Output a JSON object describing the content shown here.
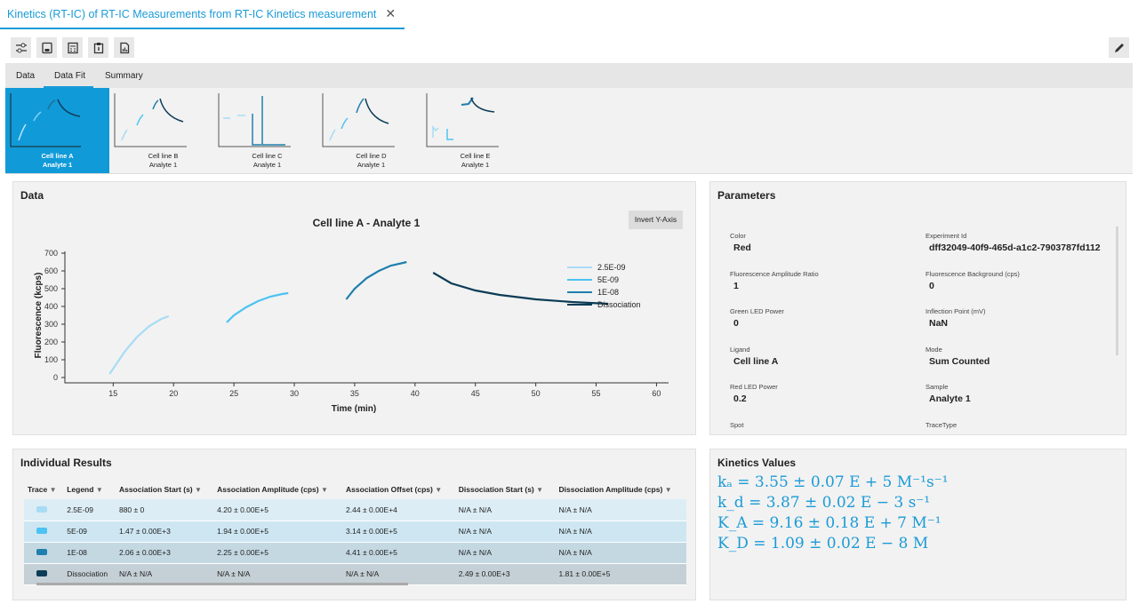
{
  "document_tab": {
    "title": "Kinetics (RT-IC) of RT-IC Measurements from RT-IC Kinetics measurement",
    "close_icon": "close-icon"
  },
  "toolbar": {
    "icons": [
      "settings-sliders-icon",
      "save-icon",
      "calculator-icon",
      "clipboard-icon",
      "report-icon"
    ],
    "edit_icon": "pencil-icon"
  },
  "tabs": [
    {
      "label": "Data"
    },
    {
      "label": "Data Fit",
      "active": true
    },
    {
      "label": "Summary"
    }
  ],
  "thumbnails": [
    {
      "line1": "Cell line A",
      "line2": "Analyte 1",
      "selected": true
    },
    {
      "line1": "Cell line B",
      "line2": "Analyte 1"
    },
    {
      "line1": "Cell line C",
      "line2": "Analyte 1"
    },
    {
      "line1": "Cell line D",
      "line2": "Analyte 1"
    },
    {
      "line1": "Cell line E",
      "line2": "Analyte 1"
    }
  ],
  "data_panel": {
    "title": "Data",
    "invert_button": "Invert Y-Axis"
  },
  "chart_data": {
    "type": "line",
    "title": "Cell line A - Analyte 1",
    "xlabel": "Time (min)",
    "ylabel": "Fluorescence (kcps)",
    "xlim": [
      11,
      61
    ],
    "ylim": [
      -30,
      710
    ],
    "xticks": [
      "15",
      "20",
      "25",
      "30",
      "35",
      "40",
      "45",
      "50",
      "55",
      "60"
    ],
    "yticks": [
      "0",
      "100",
      "200",
      "300",
      "400",
      "500",
      "600",
      "700"
    ],
    "legend_position": "right",
    "series": [
      {
        "name": "2.5E-09",
        "color": "#a8dcf5",
        "x": [
          14.7,
          15.5,
          16,
          17,
          18,
          19,
          19.6
        ],
        "y": [
          20,
          100,
          150,
          230,
          290,
          330,
          345
        ]
      },
      {
        "name": "5E-09",
        "color": "#4cc3f2",
        "x": [
          24.4,
          25,
          26,
          27,
          28,
          29,
          29.5
        ],
        "y": [
          310,
          350,
          395,
          430,
          455,
          470,
          475
        ]
      },
      {
        "name": "1E-08",
        "color": "#1f7fae",
        "x": [
          34.3,
          35,
          36,
          37,
          38,
          39,
          39.3
        ],
        "y": [
          440,
          500,
          560,
          600,
          630,
          645,
          650
        ]
      },
      {
        "name": "Dissociation",
        "color": "#0c3c56",
        "x": [
          41.5,
          43,
          45,
          47,
          50,
          53,
          56
        ],
        "y": [
          590,
          530,
          490,
          465,
          440,
          425,
          415
        ]
      }
    ]
  },
  "parameters": {
    "title": "Parameters",
    "items": [
      {
        "label": "Color",
        "value": "Red"
      },
      {
        "label": "Experiment Id",
        "value": "dff32049-40f9-465d-a1c2-7903787fd112"
      },
      {
        "label": "Fluorescence Amplitude Ratio",
        "value": "1"
      },
      {
        "label": "Fluorescence Background (cps)",
        "value": "0"
      },
      {
        "label": "Green LED Power",
        "value": "0"
      },
      {
        "label": "Inflection Point (mV)",
        "value": "NaN"
      },
      {
        "label": "Ligand",
        "value": "Cell line A"
      },
      {
        "label": "Mode",
        "value": "Sum Counted"
      },
      {
        "label": "Red LED Power",
        "value": "0.2"
      },
      {
        "label": "Sample",
        "value": "Analyte 1"
      },
      {
        "label": "Spot",
        "value": ""
      },
      {
        "label": "TraceType",
        "value": ""
      }
    ]
  },
  "results": {
    "title": "Individual Results",
    "columns": [
      "Trace",
      "Legend",
      "Association Start (s)",
      "Association Amplitude (cps)",
      "Association Offset (cps)",
      "Dissociation Start (s)",
      "Dissociation Amplitude (cps)"
    ],
    "rows": [
      {
        "color": "#a8dcf5",
        "bg": "#dcedf5",
        "cells": [
          "2.5E-09",
          "880 ± 0",
          "4.20 ± 0.00E+5",
          "2.44 ± 0.00E+4",
          "N/A ± N/A",
          "N/A ± N/A"
        ]
      },
      {
        "color": "#4cc3f2",
        "bg": "#cde6f2",
        "cells": [
          "5E-09",
          "1.47 ± 0.00E+3",
          "1.94 ± 0.00E+5",
          "3.14 ± 0.00E+5",
          "N/A ± N/A",
          "N/A ± N/A"
        ]
      },
      {
        "color": "#1f7fae",
        "bg": "#c4d8e2",
        "cells": [
          "1E-08",
          "2.06 ± 0.00E+3",
          "2.25 ± 0.00E+5",
          "4.41 ± 0.00E+5",
          "N/A ± N/A",
          "N/A ± N/A"
        ]
      },
      {
        "color": "#0c3c56",
        "bg": "#c5d0d6",
        "cells": [
          "Dissociation",
          "N/A ± N/A",
          "N/A ± N/A",
          "N/A ± N/A",
          "2.49 ± 0.00E+3",
          "1.81 ± 0.00E+5"
        ]
      }
    ]
  },
  "kinetics": {
    "title": "Kinetics Values",
    "ka": "kₐ = 3.55 ± 0.07 E + 5 M⁻¹s⁻¹",
    "kd": "k_d = 3.87 ± 0.02 E − 3 s⁻¹",
    "KA": "K_A = 9.16 ± 0.18 E + 7 M⁻¹",
    "KD": "K_D = 1.09 ± 0.02 E − 8 M"
  }
}
